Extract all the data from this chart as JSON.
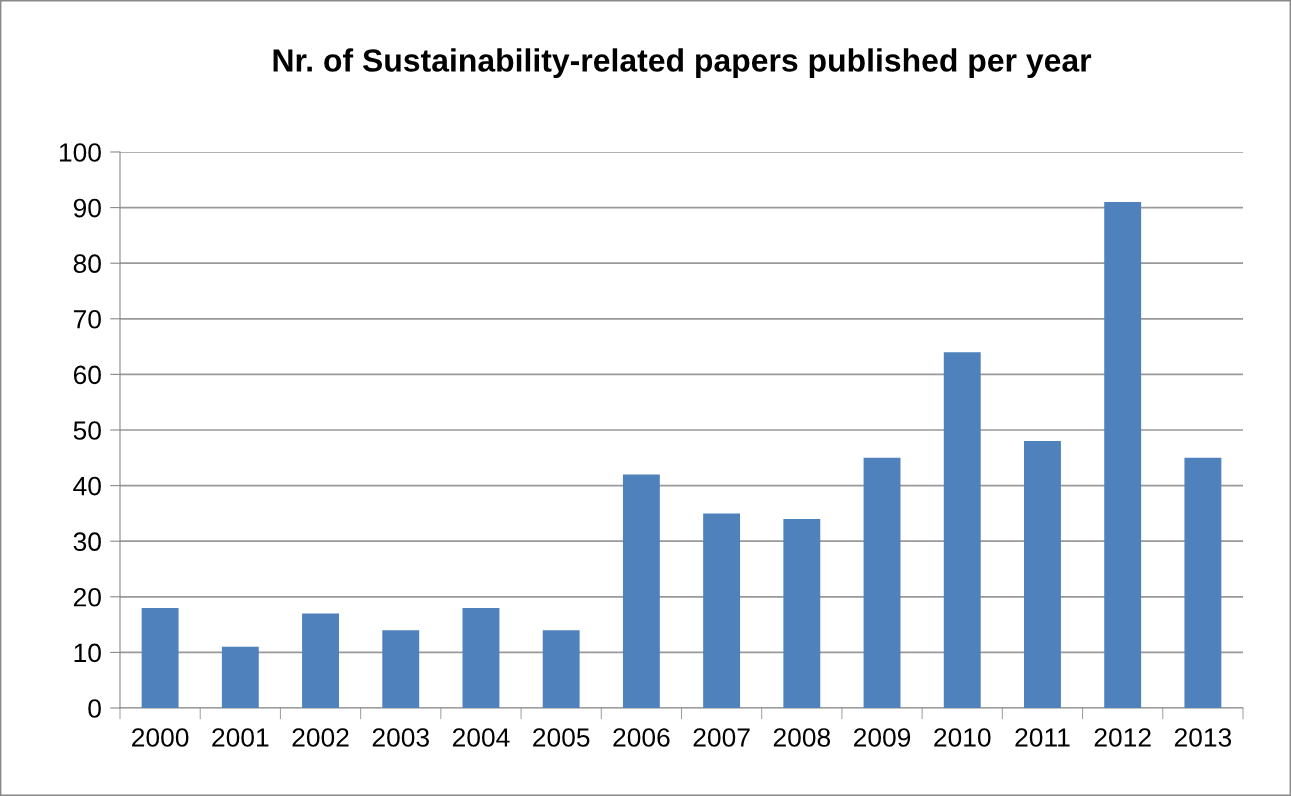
{
  "chart_data": {
    "type": "bar",
    "title": "Nr. of Sustainability-related papers published per year",
    "categories": [
      "2000",
      "2001",
      "2002",
      "2003",
      "2004",
      "2005",
      "2006",
      "2007",
      "2008",
      "2009",
      "2010",
      "2011",
      "2012",
      "2013"
    ],
    "values": [
      18,
      11,
      17,
      14,
      18,
      14,
      42,
      35,
      34,
      45,
      64,
      48,
      91,
      45
    ],
    "color": "#4f81bd",
    "ylim": [
      0,
      100
    ],
    "yticks": [
      0,
      10,
      20,
      30,
      40,
      50,
      60,
      70,
      80,
      90,
      100
    ],
    "grid": "y",
    "legend": false
  }
}
